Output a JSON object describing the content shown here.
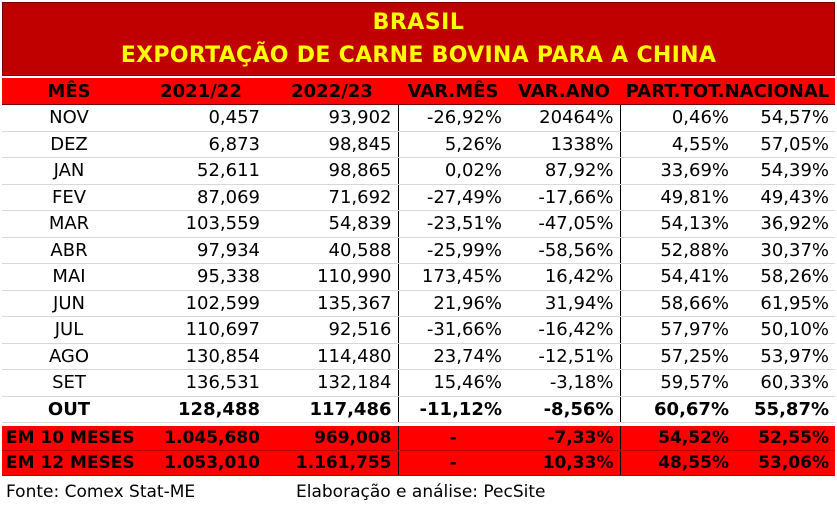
{
  "title_line1": "BRASIL",
  "title_line2": "EXPORTAÇÃO DE CARNE BOVINA PARA A CHINA",
  "headers": [
    "MÊS",
    "2021/22",
    "2022/23",
    "VAR.MÊS",
    "VAR.ANO",
    "PART.TOT.NACIONAL"
  ],
  "rows": [
    {
      "m": "NOV",
      "a": "0,457",
      "b": "93,902",
      "vm": "-26,92%",
      "va": "20464%",
      "p1": "0,46%",
      "p2": "54,57%"
    },
    {
      "m": "DEZ",
      "a": "6,873",
      "b": "98,845",
      "vm": "5,26%",
      "va": "1338%",
      "p1": "4,55%",
      "p2": "57,05%"
    },
    {
      "m": "JAN",
      "a": "52,611",
      "b": "98,865",
      "vm": "0,02%",
      "va": "87,92%",
      "p1": "33,69%",
      "p2": "54,39%"
    },
    {
      "m": "FEV",
      "a": "87,069",
      "b": "71,692",
      "vm": "-27,49%",
      "va": "-17,66%",
      "p1": "49,81%",
      "p2": "49,43%"
    },
    {
      "m": "MAR",
      "a": "103,559",
      "b": "54,839",
      "vm": "-23,51%",
      "va": "-47,05%",
      "p1": "54,13%",
      "p2": "36,92%"
    },
    {
      "m": "ABR",
      "a": "97,934",
      "b": "40,588",
      "vm": "-25,99%",
      "va": "-58,56%",
      "p1": "52,88%",
      "p2": "30,37%"
    },
    {
      "m": "MAI",
      "a": "95,338",
      "b": "110,990",
      "vm": "173,45%",
      "va": "16,42%",
      "p1": "54,41%",
      "p2": "58,26%"
    },
    {
      "m": "JUN",
      "a": "102,599",
      "b": "135,367",
      "vm": "21,96%",
      "va": "31,94%",
      "p1": "58,66%",
      "p2": "61,95%"
    },
    {
      "m": "JUL",
      "a": "110,697",
      "b": "92,516",
      "vm": "-31,66%",
      "va": "-16,42%",
      "p1": "57,97%",
      "p2": "50,10%"
    },
    {
      "m": "AGO",
      "a": "130,854",
      "b": "114,480",
      "vm": "23,74%",
      "va": "-12,51%",
      "p1": "57,25%",
      "p2": "53,97%"
    },
    {
      "m": "SET",
      "a": "136,531",
      "b": "132,184",
      "vm": "15,46%",
      "va": "-3,18%",
      "p1": "59,57%",
      "p2": "60,33%"
    },
    {
      "m": "OUT",
      "a": "128,488",
      "b": "117,486",
      "vm": "-11,12%",
      "va": "-8,56%",
      "p1": "60,67%",
      "p2": "55,87%"
    }
  ],
  "totals": [
    {
      "m": "EM 10 MESES",
      "a": "1.045,680",
      "b": "969,008",
      "vm": "-",
      "va": "-7,33%",
      "p1": "54,52%",
      "p2": "52,55%"
    },
    {
      "m": "EM 12 MESES",
      "a": "1.053,010",
      "b": "1.161,755",
      "vm": "-",
      "va": "10,33%",
      "p1": "48,55%",
      "p2": "53,06%"
    }
  ],
  "source": "Fonte: Comex Stat-ME",
  "credit": "Elaboração e análise: PecSite",
  "colors": {
    "title_bg": "#c00000",
    "title_text": "#ffff00",
    "header_bg": "#ff0000",
    "total_bg": "#ff0000"
  },
  "chart_data": {
    "type": "table",
    "title": "BRASIL",
    "subtitle": "EXPORTAÇÃO DE CARNE BOVINA PARA A CHINA",
    "columns": [
      "MÊS",
      "2021/22",
      "2022/23",
      "VAR.MÊS",
      "VAR.ANO",
      "PART.TOT.NACIONAL 2021/22",
      "PART.TOT.NACIONAL 2022/23"
    ],
    "categories": [
      "NOV",
      "DEZ",
      "JAN",
      "FEV",
      "MAR",
      "ABR",
      "MAI",
      "JUN",
      "JUL",
      "AGO",
      "SET",
      "OUT"
    ],
    "series": [
      {
        "name": "2021/22",
        "values": [
          0.457,
          6.873,
          52.611,
          87.069,
          103.559,
          97.934,
          95.338,
          102.599,
          110.697,
          130.854,
          136.531,
          128.488
        ]
      },
      {
        "name": "2022/23",
        "values": [
          93.902,
          98.845,
          98.865,
          71.692,
          54.839,
          40.588,
          110.99,
          135.367,
          92.516,
          114.48,
          132.184,
          117.486
        ]
      },
      {
        "name": "VAR.MÊS",
        "values": [
          -26.92,
          5.26,
          0.02,
          -27.49,
          -23.51,
          -25.99,
          173.45,
          21.96,
          -31.66,
          23.74,
          15.46,
          -11.12
        ]
      },
      {
        "name": "VAR.ANO",
        "values": [
          20464,
          1338,
          87.92,
          -17.66,
          -47.05,
          -58.56,
          16.42,
          31.94,
          -16.42,
          -12.51,
          -3.18,
          -8.56
        ]
      },
      {
        "name": "PART.TOT.NACIONAL",
        "values": [
          0.46,
          4.55,
          33.69,
          49.81,
          54.13,
          52.88,
          54.41,
          58.66,
          57.97,
          57.25,
          59.57,
          60.67
        ]
      },
      {
        "name": "PART.TOT.NACIONAL",
        "values": [
          54.57,
          57.05,
          54.39,
          49.43,
          36.92,
          30.37,
          58.26,
          61.95,
          50.1,
          53.97,
          60.33,
          55.87
        ]
      }
    ],
    "totals": [
      {
        "label": "EM 10 MESES",
        "values": [
          1045.68,
          969.008,
          null,
          -7.33,
          54.52,
          52.55
        ]
      },
      {
        "label": "EM 12 MESES",
        "values": [
          1053.01,
          1161.755,
          null,
          10.33,
          48.55,
          53.06
        ]
      }
    ]
  }
}
